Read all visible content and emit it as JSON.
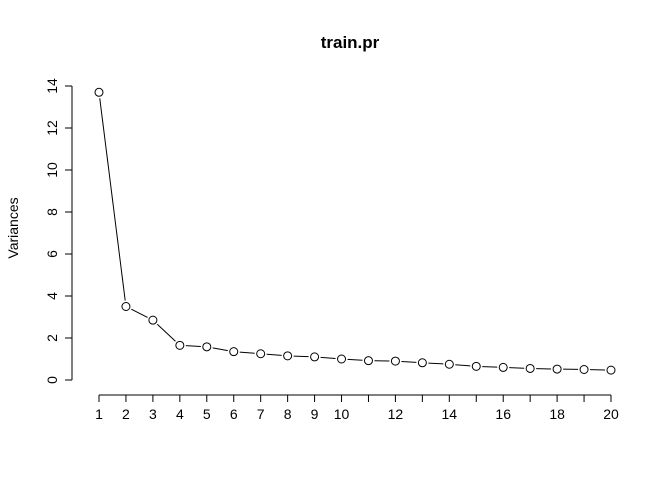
{
  "chart_data": {
    "type": "line",
    "title": "train.pr",
    "xlabel": "",
    "ylabel": "Variances",
    "x": [
      1,
      2,
      3,
      4,
      5,
      6,
      7,
      8,
      9,
      10,
      11,
      12,
      13,
      14,
      15,
      16,
      17,
      18,
      19,
      20
    ],
    "x_tick_labels": [
      "1",
      "2",
      "3",
      "4",
      "5",
      "6",
      "7",
      "8",
      "9",
      "10",
      "12",
      "14",
      "16",
      "18",
      "20"
    ],
    "y_ticks": [
      0,
      2,
      4,
      6,
      8,
      10,
      12,
      14
    ],
    "ylim": [
      0,
      14
    ],
    "xlim": [
      1,
      20
    ],
    "series": [
      {
        "values": [
          13.7,
          3.5,
          2.85,
          1.65,
          1.58,
          1.35,
          1.25,
          1.15,
          1.1,
          1.0,
          0.92,
          0.9,
          0.82,
          0.75,
          0.65,
          0.6,
          0.55,
          0.52,
          0.5,
          0.47
        ]
      }
    ],
    "grid": false,
    "marker": "open-circle"
  }
}
